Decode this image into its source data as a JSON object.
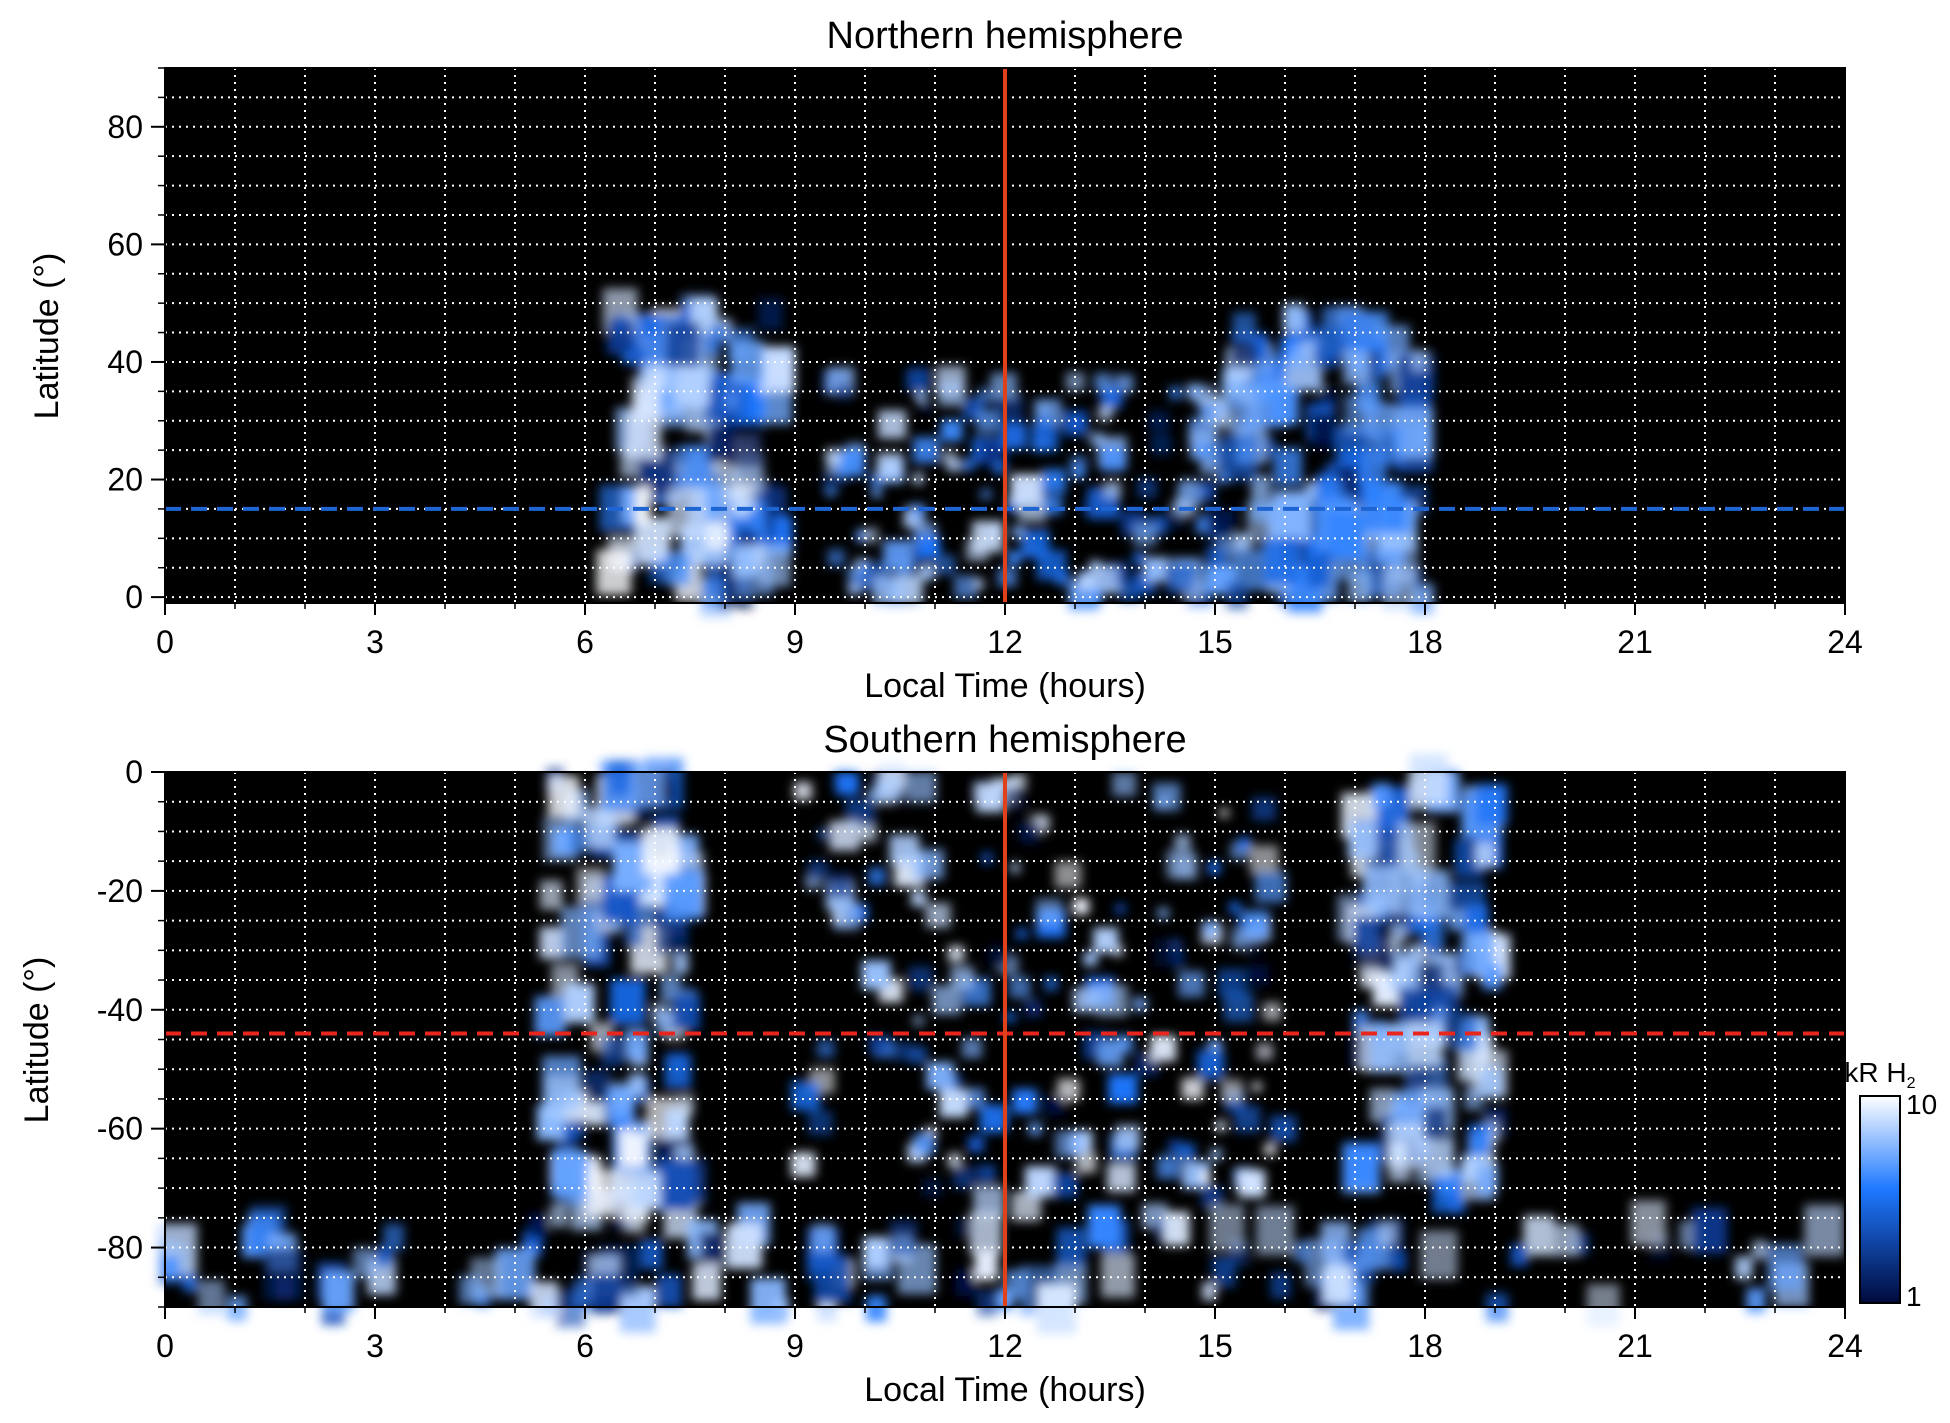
{
  "colors": {
    "background": "#000000",
    "emission_low": "#000a3c",
    "emission_mid": "#1e78ff",
    "emission_high": "#ffffff",
    "grid": "#ffffff",
    "noon_line": "#e0401a",
    "north_ref_line": "#1e64d2",
    "south_ref_line": "#e8261e"
  },
  "colorbar": {
    "unit": "kR H",
    "unit_sub": "2",
    "max_label": "10",
    "min_label": "1",
    "scale": "log"
  },
  "chart_data": [
    {
      "type": "heatmap",
      "title": "Northern hemisphere",
      "xlabel": "Local Time (hours)",
      "ylabel": "Latitude (°)",
      "xlim": [
        0,
        24
      ],
      "ylim": [
        -1,
        90
      ],
      "x_ticks": [
        "0",
        "3",
        "6",
        "9",
        "12",
        "15",
        "18",
        "21",
        "24"
      ],
      "y_ticks": [
        "0",
        "20",
        "40",
        "60",
        "80"
      ],
      "grid": true,
      "noon_line_x": 12,
      "reference_latitude": 15,
      "reference_style": "dashed",
      "emission_features": [
        {
          "label": "dawn arc",
          "lt_start": 6.4,
          "lt_end": 8.8,
          "lat_min": 0,
          "lat_max": 50,
          "peak_kR": 10
        },
        {
          "label": "noon patches",
          "lt_start": 9.5,
          "lt_end": 15.5,
          "lat_min": 0,
          "lat_max": 38,
          "peak_kR": 8
        },
        {
          "label": "dusk arc",
          "lt_start": 15.3,
          "lt_end": 18.0,
          "lat_min": 0,
          "lat_max": 49,
          "peak_kR": 7
        }
      ]
    },
    {
      "type": "heatmap",
      "title": "Southern hemisphere",
      "xlabel": "Local Time (hours)",
      "ylabel": "Latitude (°)",
      "xlim": [
        0,
        24
      ],
      "ylim": [
        -90,
        0
      ],
      "x_ticks": [
        "0",
        "3",
        "6",
        "9",
        "12",
        "15",
        "18",
        "21",
        "24"
      ],
      "y_ticks": [
        "0",
        "-20",
        "-40",
        "-60",
        "-80"
      ],
      "grid": true,
      "noon_line_x": 12,
      "reference_latitude": -44,
      "reference_style": "dashed",
      "emission_features": [
        {
          "label": "dawn arc",
          "lt_start": 5.5,
          "lt_end": 7.5,
          "lat_min": -75,
          "lat_max": 0,
          "peak_kR": 10
        },
        {
          "label": "noon patches",
          "lt_start": 9.0,
          "lt_end": 16.0,
          "lat_min": -75,
          "lat_max": 0,
          "peak_kR": 10
        },
        {
          "label": "dusk arc",
          "lt_start": 17.0,
          "lt_end": 19.0,
          "lat_min": -72,
          "lat_max": 0,
          "peak_kR": 9
        },
        {
          "label": "polar band",
          "lt_start": 0,
          "lt_end": 24,
          "lat_min": -90,
          "lat_max": -75,
          "peak_kR": 9
        }
      ]
    }
  ]
}
